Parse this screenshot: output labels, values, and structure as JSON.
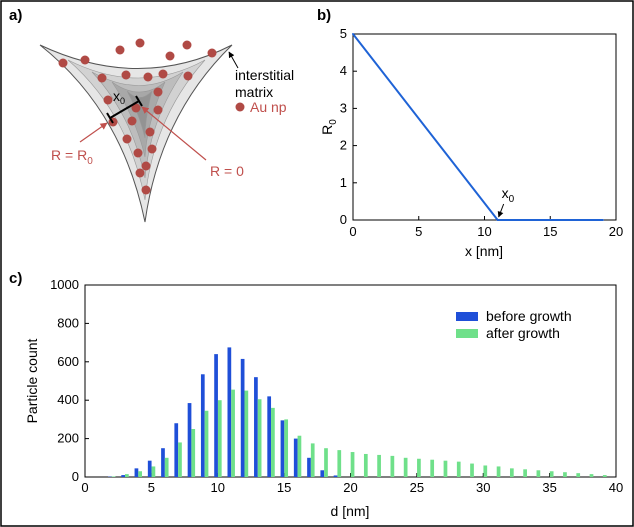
{
  "panel_a": {
    "label": "a)",
    "annotation_interstitial": "interstitial",
    "annotation_matrix": "matrix",
    "legend_au": "Au np",
    "label_x0": "x",
    "label_x0_sub": "0",
    "label_r_r0": "R = R",
    "label_r_r0_sub": "0",
    "label_r_zero": "R = 0",
    "colors": {
      "np": "#b04a45",
      "text_red": "#c0504d"
    }
  },
  "chart_data": [
    {
      "panel": "b)",
      "type": "line",
      "x": [
        0,
        11,
        19
      ],
      "series": [
        {
          "values": [
            5,
            0,
            0
          ],
          "color": "#1f63d6"
        }
      ],
      "xlabel": "x [nm]",
      "ylabel": "R",
      "ylabel_sub": "0",
      "xlim": [
        0,
        20
      ],
      "ylim": [
        0,
        5
      ],
      "xticks": [
        0,
        5,
        10,
        15,
        20
      ],
      "yticks": [
        0,
        1,
        2,
        3,
        4,
        5
      ],
      "annotation": {
        "text": "x",
        "sub": "0",
        "x": 11,
        "y": 0
      },
      "grid": false
    },
    {
      "panel": "c)",
      "type": "bar",
      "xlabel": "d [nm]",
      "ylabel": "Particle count",
      "xlim": [
        0,
        40
      ],
      "ylim": [
        0,
        1000
      ],
      "xticks": [
        0,
        5,
        10,
        15,
        20,
        25,
        30,
        35,
        40
      ],
      "yticks": [
        0,
        200,
        400,
        600,
        800,
        1000
      ],
      "legend_position": "top-right",
      "grid": false,
      "series": [
        {
          "name": "before growth",
          "color": "#1f4fd8",
          "x": [
            2,
            3,
            4,
            5,
            6,
            7,
            8,
            9,
            10,
            11,
            12,
            13,
            14,
            15,
            16,
            17,
            18,
            19
          ],
          "values": [
            2,
            10,
            45,
            85,
            150,
            280,
            385,
            535,
            640,
            675,
            615,
            520,
            420,
            295,
            200,
            100,
            35,
            8
          ]
        },
        {
          "name": "after growth",
          "color": "#6fe08a",
          "x": [
            2,
            3,
            4,
            5,
            6,
            7,
            8,
            9,
            10,
            11,
            12,
            13,
            14,
            15,
            16,
            17,
            18,
            19,
            20,
            21,
            22,
            23,
            24,
            25,
            26,
            27,
            28,
            29,
            30,
            31,
            32,
            33,
            34,
            35,
            36,
            37,
            38,
            39
          ],
          "values": [
            3,
            15,
            30,
            55,
            100,
            180,
            250,
            345,
            400,
            455,
            450,
            405,
            360,
            300,
            215,
            175,
            150,
            140,
            130,
            120,
            115,
            110,
            100,
            95,
            90,
            85,
            80,
            70,
            60,
            55,
            45,
            40,
            35,
            30,
            25,
            20,
            15,
            10
          ]
        }
      ]
    }
  ]
}
